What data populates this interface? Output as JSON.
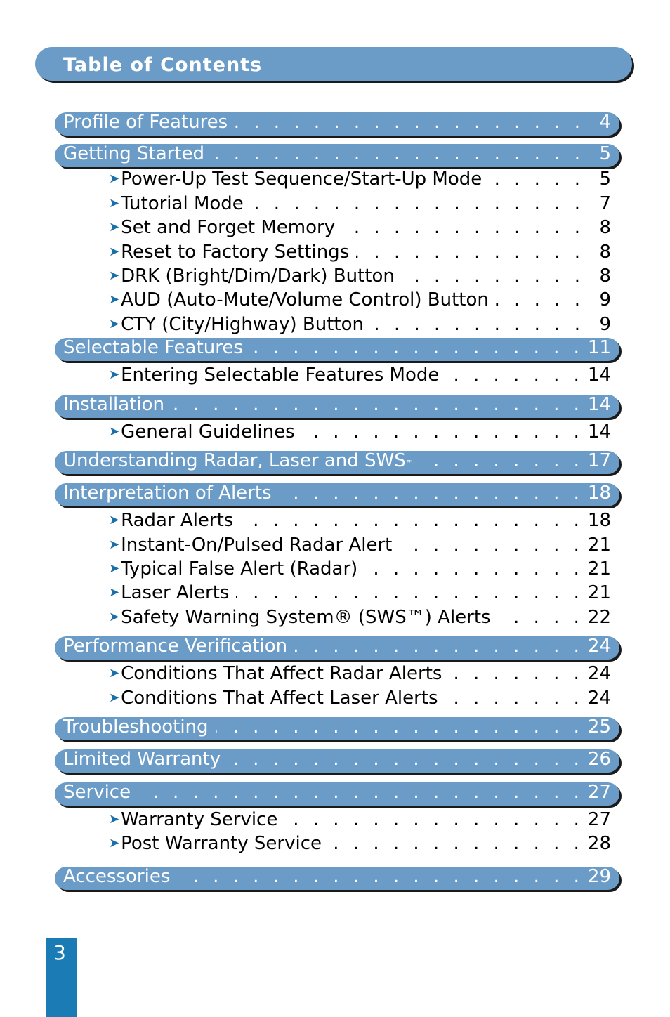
{
  "header": {
    "title": "Table of Contents"
  },
  "sections": [
    {
      "label": "Profile of Features",
      "page": "4",
      "items": []
    },
    {
      "label": "Getting Started",
      "page": "5",
      "items": [
        {
          "label": "Power-Up Test Sequence/Start-Up Mode",
          "page": "5"
        },
        {
          "label": "Tutorial Mode",
          "page": "7"
        },
        {
          "label": "Set and Forget Memory",
          "page": "8"
        },
        {
          "label": "Reset to Factory Settings",
          "page": "8"
        },
        {
          "label": "DRK (Bright/Dim/Dark) Button",
          "page": "8"
        },
        {
          "label": "AUD (Auto-Mute/Volume Control) Button",
          "page": "9"
        },
        {
          "label": "CTY (City/Highway) Button",
          "page": "9"
        }
      ]
    },
    {
      "label": "Selectable Features",
      "page": "11",
      "items": [
        {
          "label": "Entering Selectable Features Mode",
          "page": "14"
        }
      ]
    },
    {
      "label": "Installation",
      "page": "14",
      "items": [
        {
          "label": "General Guidelines",
          "page": "14"
        }
      ]
    },
    {
      "label": "Understanding Radar, Laser and SWS",
      "label_sup": "™",
      "page": "17",
      "items": []
    },
    {
      "label": "Interpretation of Alerts",
      "page": "18",
      "items": [
        {
          "label": "Radar Alerts",
          "page": "18"
        },
        {
          "label": "Instant-On/Pulsed Radar Alert",
          "page": "21"
        },
        {
          "label": "Typical False Alert (Radar)",
          "page": "21"
        },
        {
          "label": "Laser Alerts",
          "page": "21"
        },
        {
          "label": "Safety Warning System® (SWS™) Alerts",
          "page": "22"
        }
      ]
    },
    {
      "label": "Performance Verification",
      "page": "24",
      "items": [
        {
          "label": "Conditions That Affect Radar Alerts",
          "page": "24"
        },
        {
          "label": "Conditions That Affect Laser Alerts",
          "page": "24"
        }
      ]
    },
    {
      "label": "Troubleshooting",
      "page": "25",
      "items": []
    },
    {
      "label": "Limited Warranty",
      "page": "26",
      "items": []
    },
    {
      "label": "Service",
      "page": "27",
      "items": [
        {
          "label": "Warranty Service",
          "page": "27"
        },
        {
          "label": "Post Warranty Service",
          "page": "28"
        }
      ]
    },
    {
      "label": "Accessories",
      "page": "29",
      "items": []
    }
  ],
  "footer": {
    "page_number": "3"
  },
  "colors": {
    "bar": "#6b9cc8",
    "shadow": "#1a1a1a",
    "page_tab": "#1a7bb5",
    "arrow": "#1a6fa8"
  },
  "icons": {
    "bullet": "arrow-bullet-icon"
  }
}
